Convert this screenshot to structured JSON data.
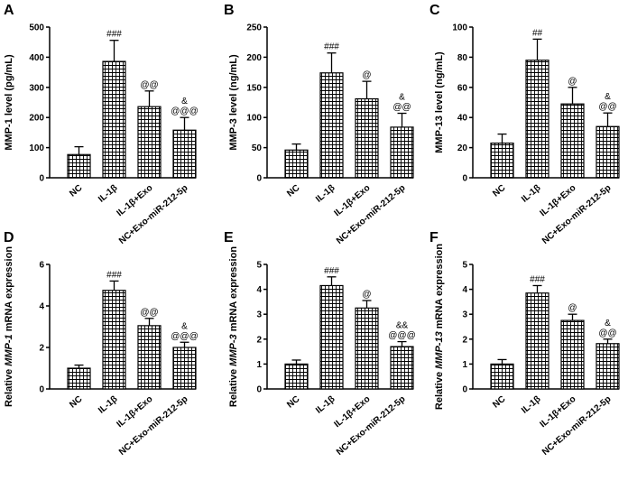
{
  "chart_data": [
    {
      "panel": "A",
      "type": "bar",
      "categories": [
        "NC",
        "IL-1β",
        "IL-1β+Exo",
        "NC+Exo-miR-212-5p"
      ],
      "values": [
        77,
        386,
        236,
        158
      ],
      "errors": [
        26,
        70,
        52,
        42
      ],
      "annotations": [
        [],
        [
          "###"
        ],
        [
          "@@"
        ],
        [
          "&",
          "@@@"
        ]
      ],
      "ylabel": "MMP-1 level (pg/mL)",
      "ylim": [
        0,
        500
      ],
      "ticks": [
        0,
        100,
        200,
        300,
        400,
        500
      ],
      "tick_labels": [
        "0",
        "100",
        "200",
        "300",
        "400",
        "500"
      ]
    },
    {
      "panel": "B",
      "type": "bar",
      "categories": [
        "NC",
        "IL-1β",
        "IL-1β+Exo",
        "NC+Exo-miR-212-5p"
      ],
      "values": [
        46,
        174,
        131,
        84
      ],
      "errors": [
        10,
        33,
        29,
        23
      ],
      "annotations": [
        [],
        [
          "###"
        ],
        [
          "@"
        ],
        [
          "&",
          "@@"
        ]
      ],
      "ylabel": "MMP-3 level (ng/mL)",
      "ylim": [
        0,
        250
      ],
      "ticks": [
        0,
        50,
        100,
        150,
        200,
        250
      ],
      "tick_labels": [
        "0",
        "50",
        "100",
        "150",
        "200",
        "250"
      ]
    },
    {
      "panel": "C",
      "type": "bar",
      "categories": [
        "NC",
        "IL-1β",
        "IL-1β+Exo",
        "NC+Exo-miR-212-5p"
      ],
      "values": [
        23,
        78,
        49,
        34
      ],
      "errors": [
        6,
        14,
        11,
        9
      ],
      "annotations": [
        [],
        [
          "##"
        ],
        [
          "@"
        ],
        [
          "&",
          "@@"
        ]
      ],
      "ylabel": "MMP-13 level (ng/mL)",
      "ylim": [
        0,
        100
      ],
      "ticks": [
        0,
        20,
        40,
        60,
        80,
        100
      ],
      "tick_labels": [
        "0",
        "20",
        "40",
        "60",
        "80",
        "100"
      ]
    },
    {
      "panel": "D",
      "type": "bar",
      "categories": [
        "NC",
        "IL-1β",
        "IL-1β+Exo",
        "NC+Exo-miR-212-5p"
      ],
      "values": [
        1.0,
        4.75,
        3.05,
        2.0
      ],
      "errors": [
        0.15,
        0.45,
        0.35,
        0.25
      ],
      "annotations": [
        [],
        [
          "###"
        ],
        [
          "@@"
        ],
        [
          "&",
          "@@@"
        ]
      ],
      "ylabel_prefix": "Relative ",
      "ylabel_gene": "MMP-1",
      "ylabel_suffix": " mRNA expression",
      "ylim": [
        0,
        6
      ],
      "ticks": [
        0,
        2,
        4,
        6
      ],
      "tick_labels": [
        "0",
        "2",
        "4",
        "6"
      ]
    },
    {
      "panel": "E",
      "type": "bar",
      "categories": [
        "NC",
        "IL-1β",
        "IL-1β+Exo",
        "NC+Exo-miR-212-5p"
      ],
      "values": [
        1.0,
        4.15,
        3.25,
        1.7
      ],
      "errors": [
        0.16,
        0.35,
        0.3,
        0.2
      ],
      "annotations": [
        [],
        [
          "###"
        ],
        [
          "@"
        ],
        [
          "&&",
          "@@@"
        ]
      ],
      "ylabel_prefix": "Relative ",
      "ylabel_gene": "MMP-3",
      "ylabel_suffix": " mRNA expression",
      "ylim": [
        0,
        5
      ],
      "ticks": [
        0,
        1,
        2,
        3,
        4,
        5
      ],
      "tick_labels": [
        "0",
        "1",
        "2",
        "3",
        "4",
        "5"
      ]
    },
    {
      "panel": "F",
      "type": "bar",
      "categories": [
        "NC",
        "IL-1β",
        "IL-1β+Exo",
        "NC+Exo-miR-212-5p"
      ],
      "values": [
        1.0,
        3.85,
        2.75,
        1.82
      ],
      "errors": [
        0.18,
        0.3,
        0.25,
        0.18
      ],
      "annotations": [
        [],
        [
          "###"
        ],
        [
          "@"
        ],
        [
          "&",
          "@@"
        ]
      ],
      "ylabel_prefix": "Relative ",
      "ylabel_gene": "MMP-13",
      "ylabel_suffix": " mRNA expression",
      "ylim": [
        0,
        5
      ],
      "ticks": [
        0,
        1,
        2,
        3,
        4,
        5
      ],
      "tick_labels": [
        "0",
        "1",
        "2",
        "3",
        "4",
        "5"
      ]
    }
  ]
}
